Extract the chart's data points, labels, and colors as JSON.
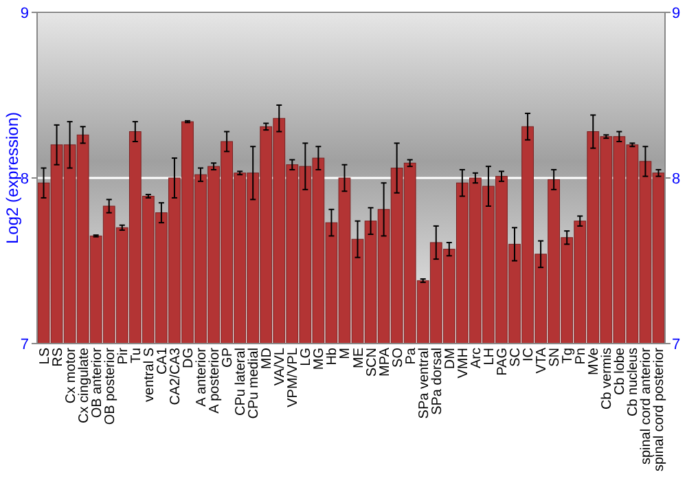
{
  "chart_data": {
    "type": "bar",
    "ylabel": "Log2 (expression)",
    "categories": [
      "LS",
      "RS",
      "Cx motor",
      "Cx cingulate",
      "OB anterior",
      "OB posterior",
      "Pir",
      "Tu",
      "ventral S",
      "CA1",
      "CA2/CA3",
      "DG",
      "A anterior",
      "A posterior",
      "GP",
      "CPu lateral",
      "CPu medial",
      "MD",
      "VA/VL",
      "VPM/VPL",
      "LG",
      "MG",
      "Hb",
      "M",
      "ME",
      "SCN",
      "MPA",
      "SO",
      "Pa",
      "SPa ventral",
      "SPa dorsal",
      "DM",
      "VMH",
      "Arc",
      "LH",
      "PAG",
      "SC",
      "IC",
      "VTA",
      "SN",
      "Tg",
      "Pn",
      "MVe",
      "Cb vermis",
      "Cb lobe",
      "Cb nucleus",
      "spinal cord anterior",
      "spinal cord posterior"
    ],
    "values": [
      7.97,
      8.2,
      8.2,
      8.26,
      7.65,
      7.83,
      7.7,
      8.28,
      7.89,
      7.79,
      8.0,
      8.34,
      8.02,
      8.07,
      8.22,
      8.03,
      8.03,
      8.31,
      8.36,
      8.08,
      8.07,
      8.12,
      7.73,
      8.0,
      7.63,
      7.74,
      7.81,
      8.06,
      8.09,
      7.38,
      7.61,
      7.57,
      7.97,
      8.0,
      7.95,
      8.01,
      7.6,
      8.31,
      7.54,
      7.99,
      7.64,
      7.74,
      8.28,
      8.25,
      8.25,
      8.2,
      8.1,
      8.03
    ],
    "errors": [
      0.09,
      0.12,
      0.14,
      0.05,
      0.005,
      0.04,
      0.015,
      0.06,
      0.01,
      0.06,
      0.12,
      0.005,
      0.04,
      0.02,
      0.06,
      0.01,
      0.16,
      0.02,
      0.08,
      0.03,
      0.14,
      0.07,
      0.08,
      0.08,
      0.11,
      0.08,
      0.16,
      0.15,
      0.02,
      0.01,
      0.1,
      0.04,
      0.08,
      0.03,
      0.12,
      0.03,
      0.1,
      0.08,
      0.08,
      0.06,
      0.04,
      0.03,
      0.1,
      0.01,
      0.03,
      0.01,
      0.09,
      0.02
    ],
    "color": "#b33434",
    "ylim": [
      7,
      9
    ],
    "yticks": [
      7,
      8,
      9
    ],
    "y2lim": [
      7,
      9
    ],
    "y2ticks": [
      7,
      8,
      9
    ],
    "grid": "y"
  }
}
